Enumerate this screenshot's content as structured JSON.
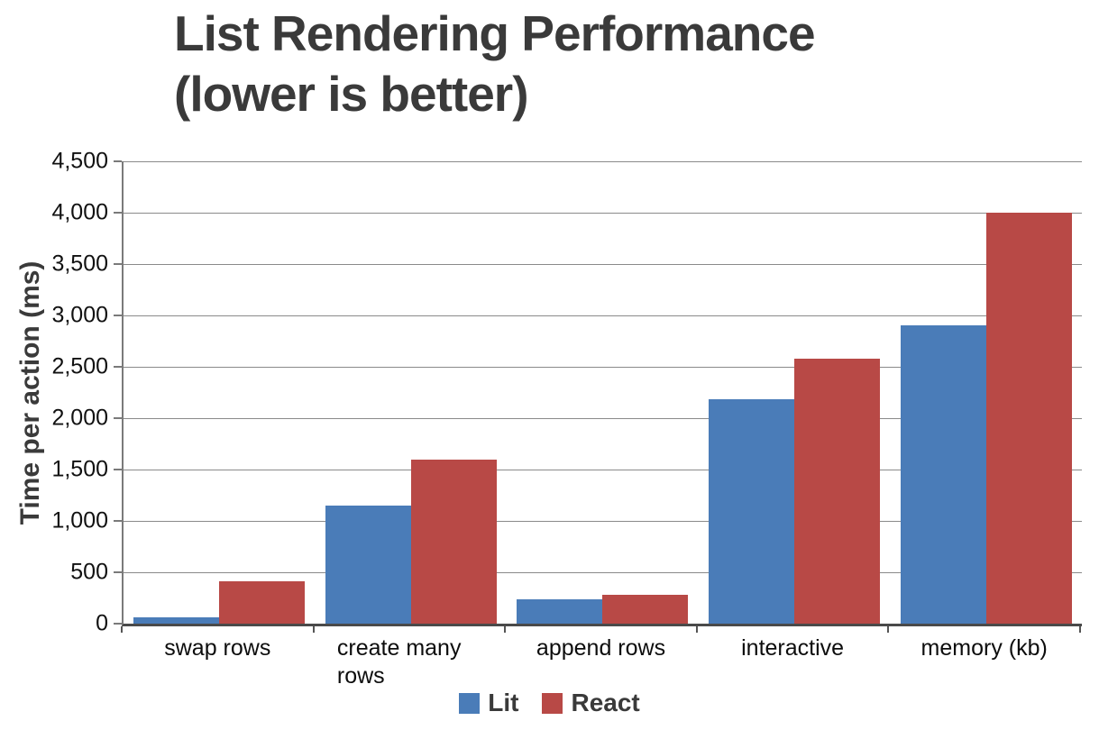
{
  "title_display": "List Rendering Performance\n(lower is better)",
  "chart_data": {
    "type": "bar",
    "title": "List Rendering Performance (lower is better)",
    "xlabel": "",
    "ylabel": "Time per action (ms)",
    "ylim": [
      0,
      4500
    ],
    "ytick_step": 500,
    "yticks": [
      "0",
      "500",
      "1,000",
      "1,500",
      "2,000",
      "2,500",
      "3,000",
      "3,500",
      "4,000",
      "4,500"
    ],
    "grid": true,
    "legend_position": "bottom",
    "categories": [
      "swap rows",
      "create many rows",
      "append rows",
      "interactive",
      "memory (kb)"
    ],
    "series": [
      {
        "name": "Lit",
        "color": "#4A7CB8",
        "values": [
          60,
          1150,
          240,
          2180,
          2900
        ]
      },
      {
        "name": "React",
        "color": "#B84946",
        "values": [
          410,
          1600,
          280,
          2580,
          4000
        ]
      }
    ]
  },
  "colors": {
    "lit_blue": "#4A7CB8",
    "react_red": "#B84946",
    "title_gray": "#3a3a3a",
    "gridline_gray": "#8a8a8a",
    "axis_dark": "#4a4a4a"
  }
}
